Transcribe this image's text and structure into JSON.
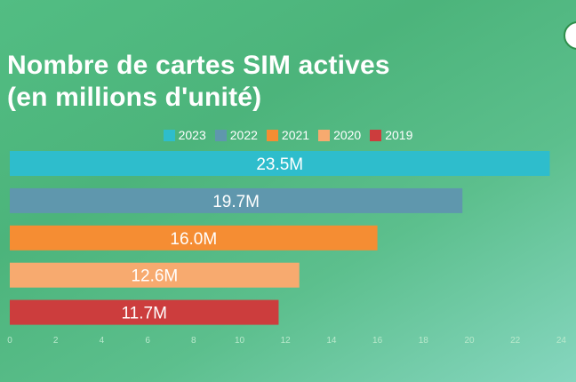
{
  "chart_data": {
    "type": "bar",
    "orientation": "horizontal",
    "title_lines": [
      "Nombre de cartes SIM actives",
      "(en millions d'unité)"
    ],
    "categories": [
      "2023",
      "2022",
      "2021",
      "2020",
      "2019"
    ],
    "values": [
      23.5,
      19.7,
      16.0,
      12.6,
      11.7
    ],
    "data_labels": [
      "23.5M",
      "19.7M",
      "16.0M",
      "12.6M",
      "11.7M"
    ],
    "colors": [
      "#2ebdcc",
      "#5f97ad",
      "#f58d33",
      "#f7aa6f",
      "#cc3d3d"
    ],
    "xticks": [
      0,
      2,
      4,
      6,
      8,
      10,
      12,
      14,
      16,
      18,
      20,
      22,
      24
    ],
    "xlim": [
      0,
      24
    ],
    "legend_position": "top-center",
    "grid": false,
    "xlabel": "",
    "ylabel": ""
  }
}
